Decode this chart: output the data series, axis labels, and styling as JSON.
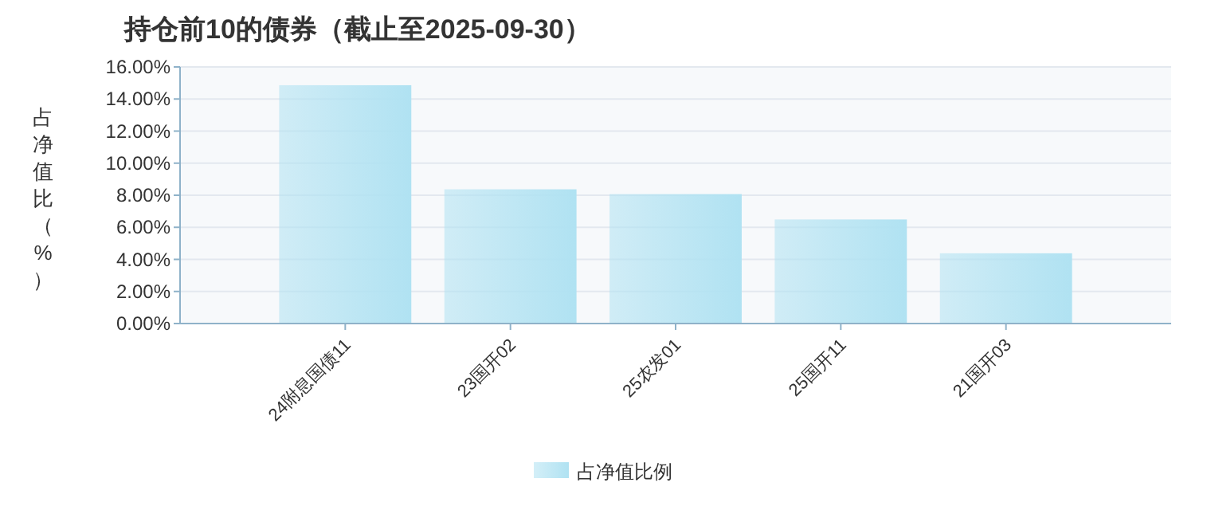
{
  "chart_data": {
    "type": "bar",
    "title": "持仓前10的债券（截止至2025-09-30）",
    "ylabel": "占净值比（%）",
    "categories": [
      "24附息国债11",
      "23国开02",
      "25农发01",
      "25国开11",
      "21国开03"
    ],
    "series": [
      {
        "name": "占净值比例",
        "color": "#b0e2f2",
        "values": [
          14.86,
          8.37,
          8.07,
          6.49,
          4.38
        ]
      }
    ],
    "ylim": [
      0,
      16
    ],
    "yticks": [
      {
        "value": 0,
        "label": "0.00%"
      },
      {
        "value": 2,
        "label": "2.00%"
      },
      {
        "value": 4,
        "label": "4.00%"
      },
      {
        "value": 6,
        "label": "6.00%"
      },
      {
        "value": 8,
        "label": "8.00%"
      },
      {
        "value": 10,
        "label": "10.00%"
      },
      {
        "value": 12,
        "label": "12.00%"
      },
      {
        "value": 14,
        "label": "14.00%"
      },
      {
        "value": 16,
        "label": "16.00%"
      }
    ],
    "grid": "y",
    "legend": "bottom"
  }
}
